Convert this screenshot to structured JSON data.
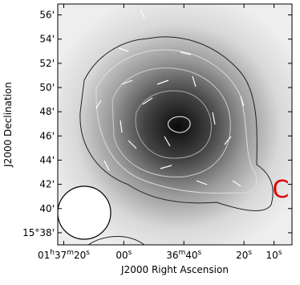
{
  "chart_data": {
    "type": "image",
    "xlabel": "J2000 Right Ascension",
    "ylabel": "J2000 Declination",
    "annotation": "C",
    "annotation_color": "#e00000",
    "xlim": [
      82,
      4
    ],
    "ylim": [
      37,
      56.9
    ],
    "xticks": [
      {
        "value": 80,
        "label": "01h37m20s"
      },
      {
        "value": 60,
        "label": "00s"
      },
      {
        "value": 40,
        "label": "36m40s"
      },
      {
        "value": 20,
        "label": "20s"
      },
      {
        "value": 10,
        "label": "10s"
      }
    ],
    "yticks": [
      {
        "value": 38,
        "label": "15°38'"
      },
      {
        "value": 40,
        "label": "40'"
      },
      {
        "value": 42,
        "label": "42'"
      },
      {
        "value": 44,
        "label": "44'"
      },
      {
        "value": 46,
        "label": "46'"
      },
      {
        "value": 48,
        "label": "48'"
      },
      {
        "value": 50,
        "label": "50'"
      },
      {
        "value": 52,
        "label": "52'"
      },
      {
        "value": 54,
        "label": "54'"
      },
      {
        "value": 56,
        "label": "56'"
      }
    ]
  }
}
